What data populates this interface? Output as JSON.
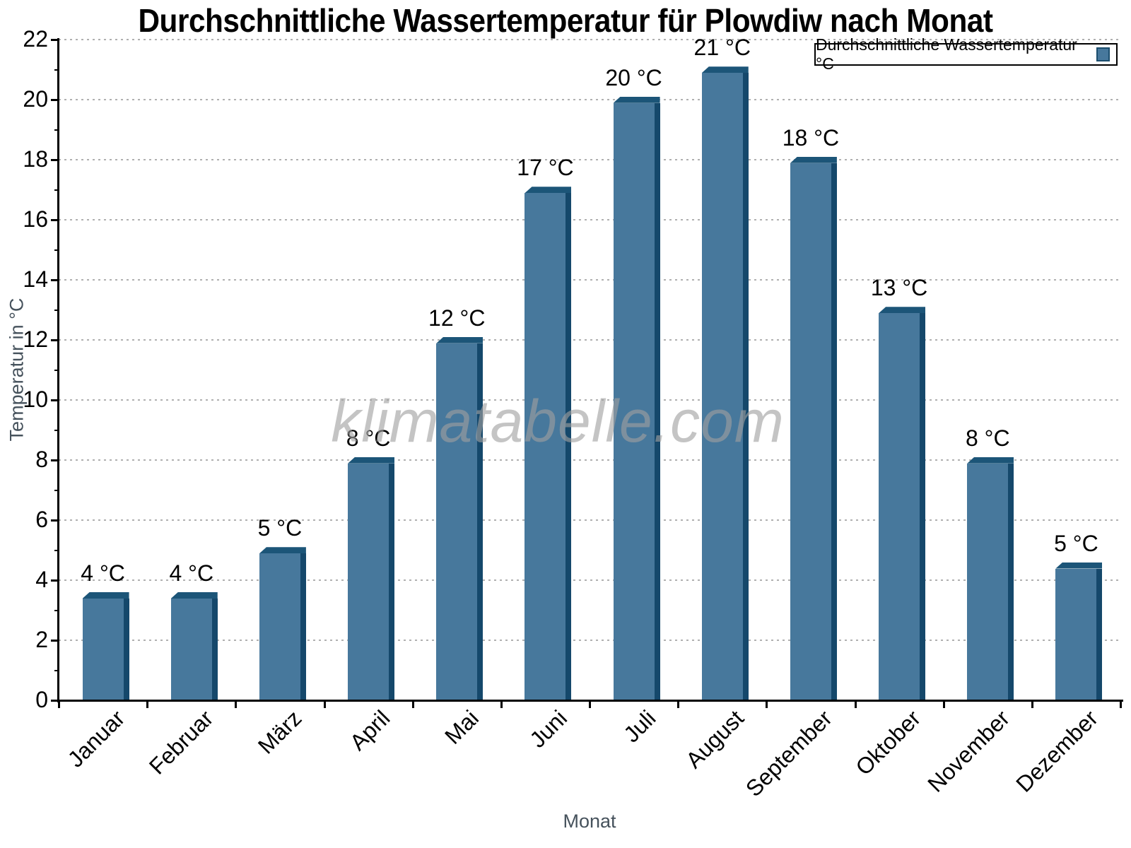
{
  "chart_data": {
    "type": "bar",
    "title": "Durchschnittliche Wassertemperatur für Plowdiw nach Monat",
    "xlabel": "Monat",
    "ylabel": "Temperatur in °C",
    "legend_label": "Durchschnittliche Wassertemperatur °C",
    "legend_position": "top-right",
    "watermark": "klimatabelle.com",
    "categories": [
      "Januar",
      "Februar",
      "März",
      "April",
      "Mai",
      "Juni",
      "Juli",
      "August",
      "September",
      "Oktober",
      "November",
      "Dezember"
    ],
    "values": [
      4,
      4,
      5,
      8,
      12,
      17,
      20,
      21,
      18,
      13,
      8,
      5
    ],
    "value_suffix": " °C",
    "bar_heights_drawn": [
      3.6,
      3.6,
      5.1,
      8.1,
      12.1,
      17.1,
      20.1,
      21.1,
      18.1,
      13.1,
      8.1,
      4.6
    ],
    "ylim": [
      0,
      22
    ],
    "ytick_step": 2,
    "grid": "horizontal-dotted",
    "colors": {
      "bar_face": "#47789c",
      "bar_side": "#15486b",
      "bar_cap": "#1c5578",
      "swatch_border": "#1c4e6e",
      "grid": "#b0b0b0",
      "axis": "#000000",
      "axis_title": "#46525c",
      "watermark": "rgba(160,160,160,0.62)"
    }
  }
}
